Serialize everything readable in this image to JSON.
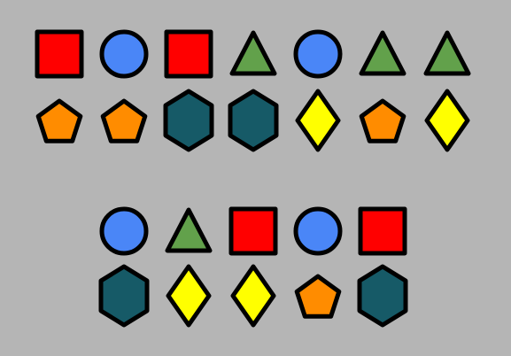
{
  "background": "#b5b5b5",
  "colors": {
    "square": "#ff0000",
    "circle": "#4a86f7",
    "triangle": "#62a14b",
    "pentagon": "#ff8c00",
    "hexagon": "#165a67",
    "diamond": "#ffff00",
    "outline": "#000000"
  },
  "groups": [
    {
      "name": "top-group",
      "rows": [
        [
          "square",
          "circle",
          "square",
          "triangle",
          "circle",
          "triangle",
          "triangle"
        ],
        [
          "pentagon",
          "pentagon",
          "hexagon",
          "hexagon",
          "diamond",
          "pentagon",
          "diamond"
        ]
      ]
    },
    {
      "name": "bottom-group",
      "rows": [
        [
          "circle",
          "triangle",
          "square",
          "circle",
          "square"
        ],
        [
          "hexagon",
          "diamond",
          "diamond",
          "pentagon",
          "hexagon"
        ]
      ]
    }
  ]
}
